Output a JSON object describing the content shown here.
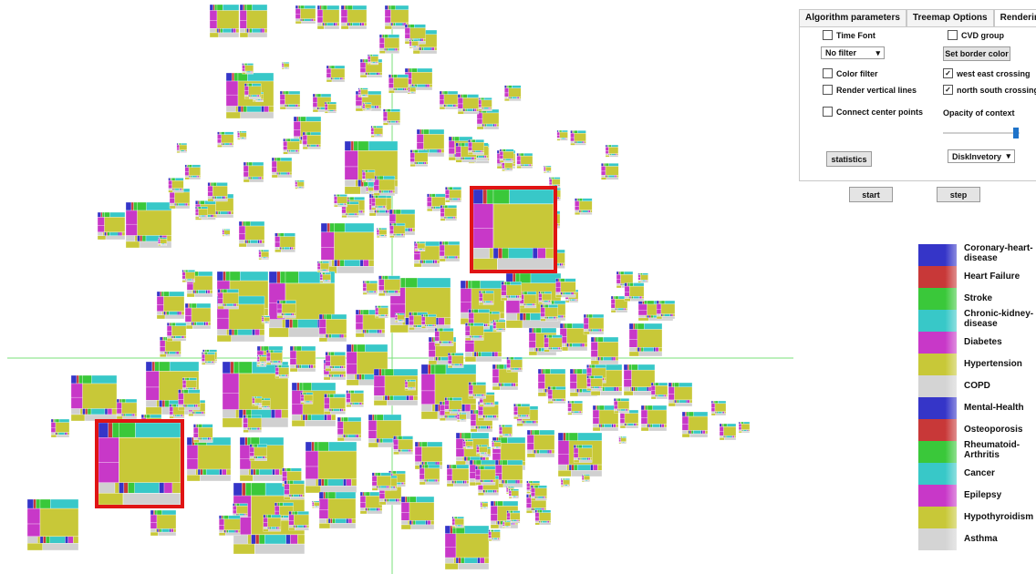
{
  "tabs": [
    "Algorithm parameters",
    "Treemap Options",
    "Rendering Options"
  ],
  "options": {
    "time_font": "Time Font",
    "cvd_group": "CVD group",
    "filter_select": "No filter",
    "border_color_button": "Set border color",
    "color_filter": "Color filter",
    "west_east": "west east crossing",
    "render_vertical": "Render vertical lines",
    "north_south": "north south crossing",
    "connect_center": "Connect center points",
    "opacity_label": "Opacity of context",
    "opacity_value": 1.0,
    "statistics_button": "statistics",
    "dataset_select": "DiskInvetory",
    "start_button": "start",
    "step_button": "step"
  },
  "checks": {
    "time_font": false,
    "cvd_group": false,
    "color_filter": false,
    "west_east": true,
    "render_vertical": false,
    "north_south": true,
    "connect_center": false
  },
  "legend": [
    {
      "label": "Coronary-heart-disease",
      "color": "#3535c8"
    },
    {
      "label": "Heart Failure",
      "color": "#c83838"
    },
    {
      "label": "Stroke",
      "color": "#3ac83a"
    },
    {
      "label": "Chronic-kidney-disease",
      "color": "#38c8c8"
    },
    {
      "label": "Diabetes",
      "color": "#c838c8"
    },
    {
      "label": "Hypertension",
      "color": "#c8c838"
    },
    {
      "label": "COPD",
      "color": "#d4d4d4"
    },
    {
      "label": "Mental-Health",
      "color": "#3535c8"
    },
    {
      "label": "Osteoporosis",
      "color": "#c83838"
    },
    {
      "label": "Rheumatoid-Arthritis",
      "color": "#3ac83a"
    },
    {
      "label": "Cancer",
      "color": "#38c8c8"
    },
    {
      "label": "Epilepsy",
      "color": "#c838c8"
    },
    {
      "label": "Hypothyroidism",
      "color": "#c8c838"
    },
    {
      "label": "Asthma",
      "color": "#d4d4d4"
    }
  ],
  "colors": {
    "highlight": "#e01414",
    "crossing_lines": "#7ae07a"
  }
}
